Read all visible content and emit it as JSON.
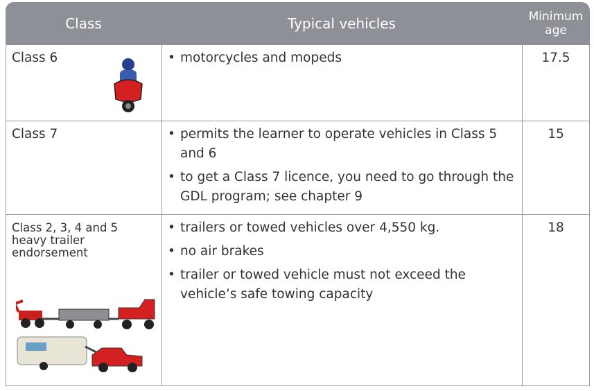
{
  "table": {
    "headers": [
      "Class",
      "Typical vehicles",
      "Minimum age"
    ],
    "rows": [
      {
        "class": "Class 6",
        "vehicles": [
          "motorcycles and mopeds"
        ],
        "min_age": 17.5
      },
      {
        "class": "Class 7",
        "vehicles": [
          "permits the learner to operate vehicles in Class 5 and 6",
          "to get a Class 7 licence, you need to go through the GDL program; see chapter 9"
        ],
        "min_age": 15
      },
      {
        "class": "Class 2, 3, 4 and 5 heavy trailer endorsement",
        "vehicles": [
          "trailers or towed vehicles over 4,550 kg.",
          "no air brakes",
          "trailer or towed vehicle must not exceed the vehicle’s safe towing capacity"
        ],
        "min_age": 18
      }
    ]
  }
}
